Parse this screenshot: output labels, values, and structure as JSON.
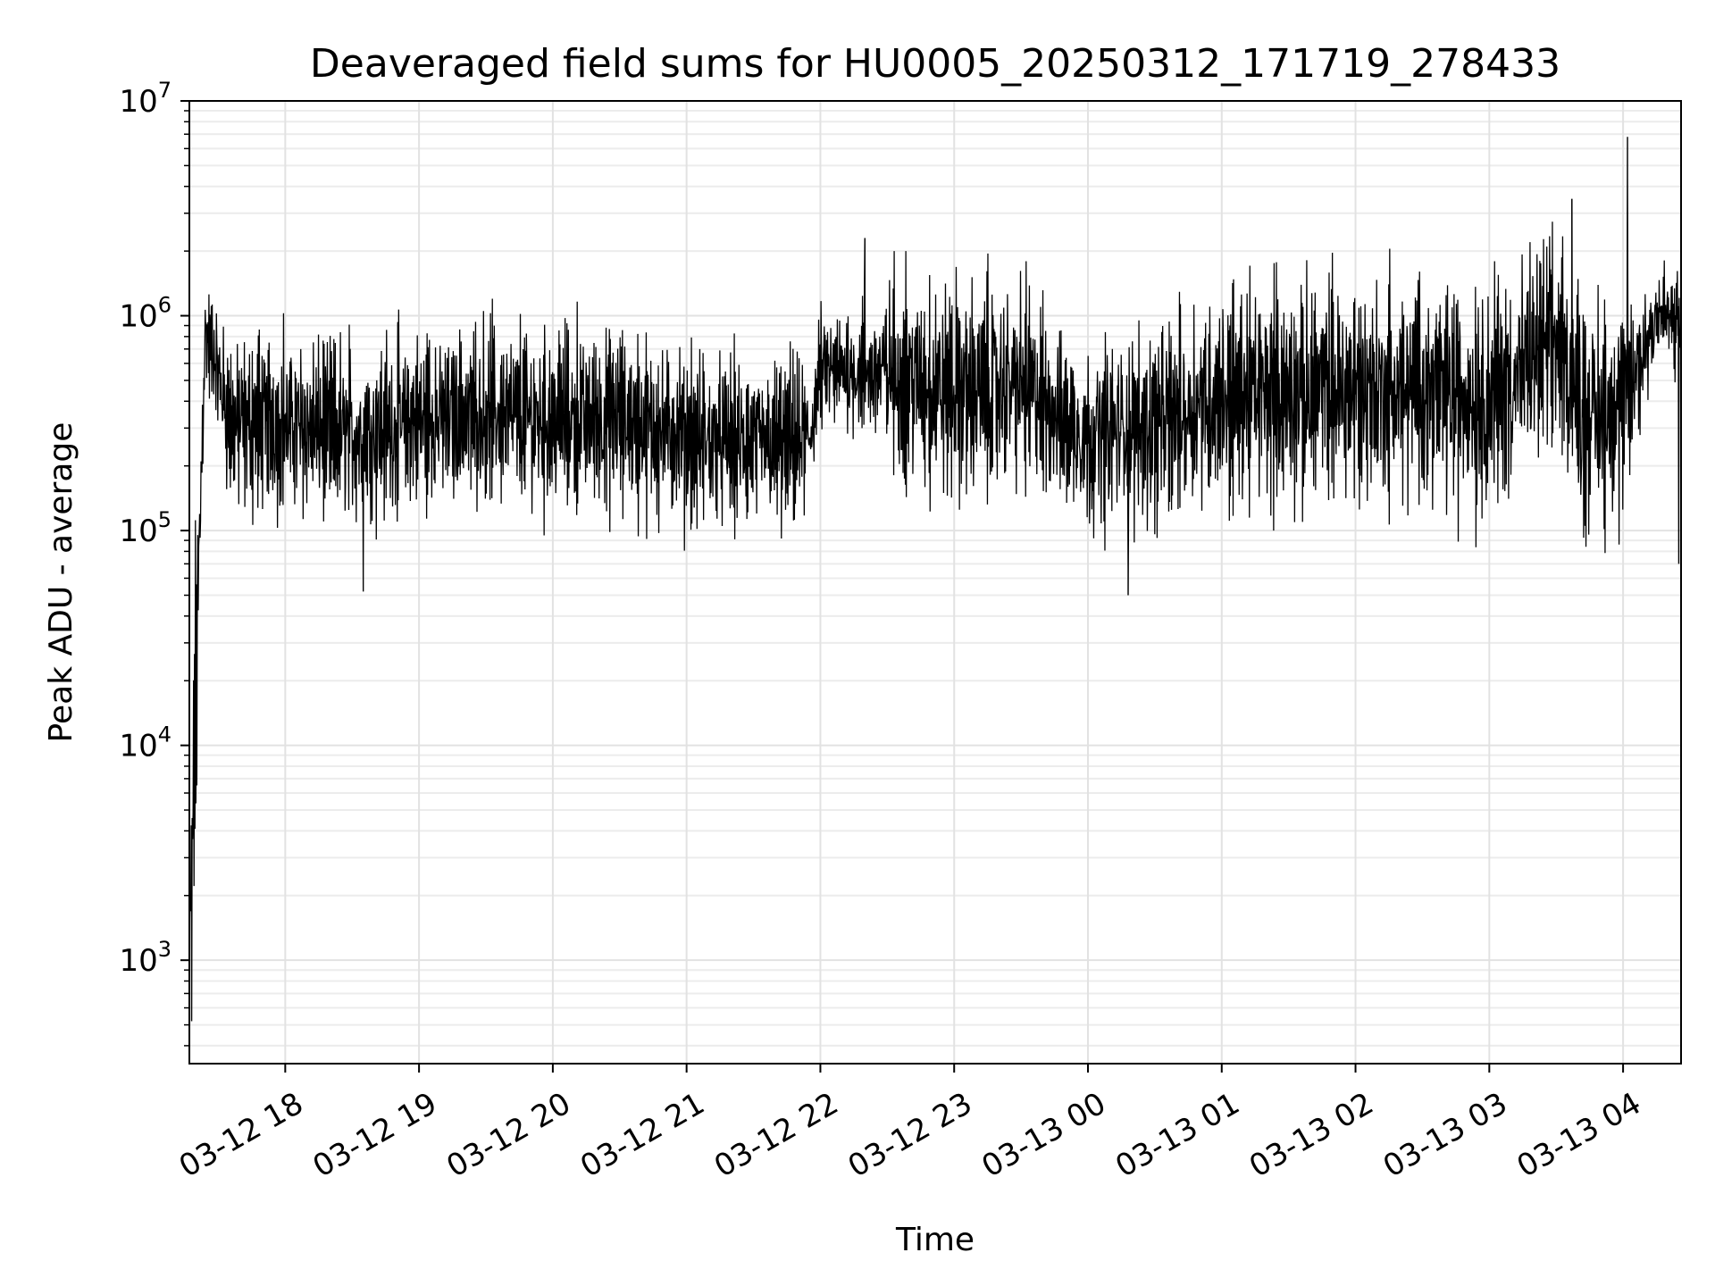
{
  "chart_data": {
    "type": "line",
    "title": "Deaveraged field sums for HU0005_20250312_171719_278433",
    "xlabel": "Time",
    "ylabel": "Peak ADU - average",
    "y_scale": "log",
    "ylim": [
      330,
      10000000
    ],
    "xlim": [
      "2025-03-12 17:17",
      "2025-03-13 04:26"
    ],
    "grid": "both, major and minor, light gray",
    "line_color": "#000000",
    "x_ticks": [
      {
        "t": "2025-03-12 18:00",
        "label": "03-12 18"
      },
      {
        "t": "2025-03-12 19:00",
        "label": "03-12 19"
      },
      {
        "t": "2025-03-12 20:00",
        "label": "03-12 20"
      },
      {
        "t": "2025-03-12 21:00",
        "label": "03-12 21"
      },
      {
        "t": "2025-03-12 22:00",
        "label": "03-12 22"
      },
      {
        "t": "2025-03-12 23:00",
        "label": "03-12 23"
      },
      {
        "t": "2025-03-13 00:00",
        "label": "03-13 00"
      },
      {
        "t": "2025-03-13 01:00",
        "label": "03-13 01"
      },
      {
        "t": "2025-03-13 02:00",
        "label": "03-13 02"
      },
      {
        "t": "2025-03-13 03:00",
        "label": "03-13 03"
      },
      {
        "t": "2025-03-13 04:00",
        "label": "03-13 04"
      }
    ],
    "y_ticks": [
      {
        "value": 1000,
        "base": "10",
        "exp": "3"
      },
      {
        "value": 10000,
        "base": "10",
        "exp": "4"
      },
      {
        "value": 100000,
        "base": "10",
        "exp": "5"
      },
      {
        "value": 1000000,
        "base": "10",
        "exp": "6"
      },
      {
        "value": 10000000,
        "base": "10",
        "exp": "7"
      }
    ],
    "series": [
      {
        "envelope": [
          {
            "t": "2025-03-12 17:17",
            "low": 600,
            "high": 2000
          },
          {
            "t": "2025-03-12 17:20",
            "low": 2000,
            "high": 200000
          },
          {
            "t": "2025-03-12 17:24",
            "low": 400000,
            "high": 1700000
          },
          {
            "t": "2025-03-12 17:28",
            "low": 300000,
            "high": 1400000
          },
          {
            "t": "2025-03-12 17:35",
            "low": 100000,
            "high": 1000000
          },
          {
            "t": "2025-03-12 18:00",
            "low": 90000,
            "high": 1100000
          },
          {
            "t": "2025-03-12 18:30",
            "low": 75000,
            "high": 1000000
          },
          {
            "t": "2025-03-12 19:00",
            "low": 95000,
            "high": 1100000
          },
          {
            "t": "2025-03-12 19:30",
            "low": 100000,
            "high": 1200000
          },
          {
            "t": "2025-03-12 20:00",
            "low": 90000,
            "high": 1200000
          },
          {
            "t": "2025-03-12 20:30",
            "low": 100000,
            "high": 1100000
          },
          {
            "t": "2025-03-12 21:00",
            "low": 80000,
            "high": 900000
          },
          {
            "t": "2025-03-12 21:30",
            "low": 75000,
            "high": 800000
          },
          {
            "t": "2025-03-12 21:55",
            "low": 85000,
            "high": 800000
          },
          {
            "t": "2025-03-12 22:00",
            "low": 250000,
            "high": 1200000
          },
          {
            "t": "2025-03-12 22:25",
            "low": 200000,
            "high": 1500000
          },
          {
            "t": "2025-03-12 22:30",
            "low": 150000,
            "high": 2000000
          },
          {
            "t": "2025-03-12 23:00",
            "low": 95000,
            "high": 2000000
          },
          {
            "t": "2025-03-12 23:30",
            "low": 120000,
            "high": 1900000
          },
          {
            "t": "2025-03-12 23:45",
            "low": 100000,
            "high": 1300000
          },
          {
            "t": "2025-03-13 00:00",
            "low": 75000,
            "high": 1000000
          },
          {
            "t": "2025-03-13 00:30",
            "low": 80000,
            "high": 1200000
          },
          {
            "t": "2025-03-13 01:00",
            "low": 100000,
            "high": 1800000
          },
          {
            "t": "2025-03-13 01:30",
            "low": 100000,
            "high": 1900000
          },
          {
            "t": "2025-03-13 02:00",
            "low": 100000,
            "high": 2000000
          },
          {
            "t": "2025-03-13 02:30",
            "low": 100000,
            "high": 2100000
          },
          {
            "t": "2025-03-13 03:00",
            "low": 80000,
            "high": 2000000
          },
          {
            "t": "2025-03-13 03:30",
            "low": 200000,
            "high": 3000000
          },
          {
            "t": "2025-03-13 03:42",
            "low": 70000,
            "high": 1800000
          },
          {
            "t": "2025-03-13 04:00",
            "low": 70000,
            "high": 1800000
          },
          {
            "t": "2025-03-13 04:15",
            "low": 500000,
            "high": 2200000
          },
          {
            "t": "2025-03-13 04:26",
            "low": 400000,
            "high": 2000000
          }
        ],
        "spikes": [
          {
            "t": "2025-03-12 17:18",
            "value": 520
          },
          {
            "t": "2025-03-12 18:35",
            "value": 52000
          },
          {
            "t": "2025-03-12 22:20",
            "value": 2300000
          },
          {
            "t": "2025-03-13 00:18",
            "value": 50000
          },
          {
            "t": "2025-03-13 03:37",
            "value": 3500000
          },
          {
            "t": "2025-03-13 04:02",
            "value": 6800000
          },
          {
            "t": "2025-03-13 04:25",
            "value": 70000
          }
        ]
      }
    ]
  }
}
